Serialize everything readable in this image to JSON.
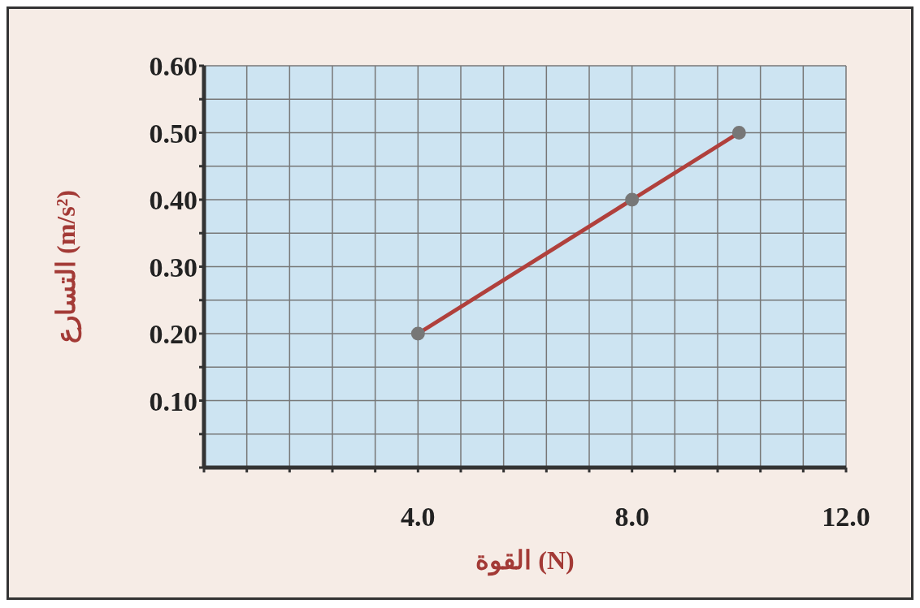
{
  "chart_data": {
    "type": "line",
    "xlabel": "القوة (N)",
    "ylabel": "التسارع (m/s²)",
    "x": [
      4,
      8,
      10
    ],
    "series": [
      {
        "color": "#b0403c",
        "values": [
          0.2,
          0.4,
          0.5
        ]
      }
    ],
    "xlim": [
      0,
      12
    ],
    "xticks": [
      {
        "value": 0,
        "label": null
      },
      {
        "value": 0.8,
        "label": null
      },
      {
        "value": 1.6,
        "label": null
      },
      {
        "value": 2.4,
        "label": null
      },
      {
        "value": 3.2,
        "label": null
      },
      {
        "value": 4,
        "label": "4.0"
      },
      {
        "value": 4.8,
        "label": null
      },
      {
        "value": 5.6,
        "label": null
      },
      {
        "value": 6.4,
        "label": null
      },
      {
        "value": 7.2,
        "label": null
      },
      {
        "value": 8,
        "label": "8.0"
      },
      {
        "value": 8.8,
        "label": null
      },
      {
        "value": 9.6,
        "label": null
      },
      {
        "value": 10.4,
        "label": null
      },
      {
        "value": 11.2,
        "label": null
      },
      {
        "value": 12,
        "label": "12.0"
      }
    ],
    "ylim": [
      0,
      0.6
    ],
    "yticks": [
      {
        "value": 0,
        "label": null
      },
      {
        "value": 0.05,
        "label": null
      },
      {
        "value": 0.1,
        "label": "0.10"
      },
      {
        "value": 0.15,
        "label": null
      },
      {
        "value": 0.2,
        "label": "0.20"
      },
      {
        "value": 0.25,
        "label": null
      },
      {
        "value": 0.3,
        "label": "0.30"
      },
      {
        "value": 0.35,
        "label": null
      },
      {
        "value": 0.4,
        "label": "0.40"
      },
      {
        "value": 0.45,
        "label": null
      },
      {
        "value": 0.5,
        "label": "0.50"
      },
      {
        "value": 0.55,
        "label": null
      },
      {
        "value": 0.6,
        "label": "0.60"
      }
    ],
    "grid": true,
    "marker": "circle",
    "line_style": "solid"
  }
}
